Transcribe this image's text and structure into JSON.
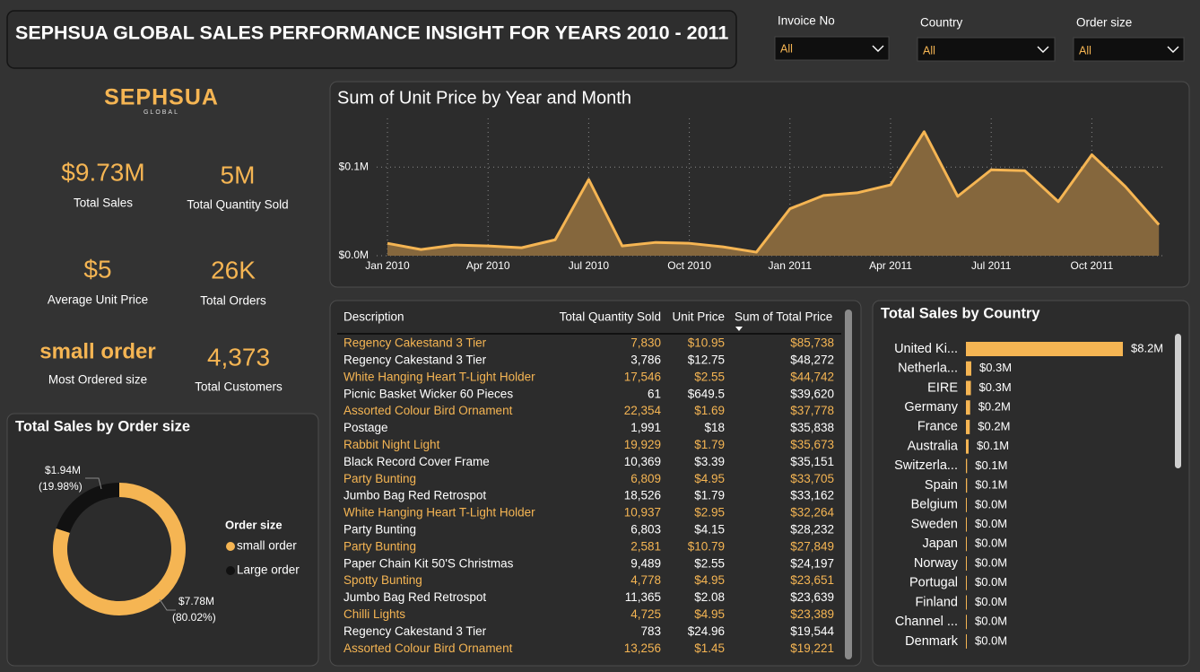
{
  "header": {
    "title": "SEPHSUA GLOBAL SALES PERFORMANCE INSIGHT FOR YEARS 2010 - 2011"
  },
  "filters": [
    {
      "label": "Invoice No",
      "value": "All"
    },
    {
      "label": "Country",
      "value": "All"
    },
    {
      "label": "Order size",
      "value": "All"
    }
  ],
  "logo": {
    "name": "SEPHSUA",
    "tagline": "GLOBAL"
  },
  "kpis": [
    {
      "value": "$9.73M",
      "label": "Total Sales"
    },
    {
      "value": "5M",
      "label": "Total Quantity Sold"
    },
    {
      "value": "$5",
      "label": "Average Unit Price"
    },
    {
      "value": "26K",
      "label": "Total Orders"
    },
    {
      "value": "small order",
      "label": "Most Ordered size"
    },
    {
      "value": "4,373",
      "label": "Total Customers"
    }
  ],
  "chart_data": [
    {
      "type": "line",
      "title": "Sum of Unit Price by Year and Month",
      "categories": [
        "Jan 2010",
        null,
        null,
        "Apr 2010",
        null,
        null,
        "Jul 2010",
        null,
        null,
        "Oct 2010",
        null,
        null,
        "Jan 2011",
        null,
        null,
        "Apr 2011",
        null,
        null,
        "Jul 2011",
        null,
        null,
        "Oct 2011",
        null,
        null
      ],
      "values": [
        0.014,
        0.007,
        0.012,
        0.011,
        0.009,
        0.018,
        0.086,
        0.011,
        0.015,
        0.014,
        0.01,
        0.004,
        0.053,
        0.068,
        0.071,
        0.08,
        0.14,
        0.067,
        0.097,
        0.096,
        0.061,
        0.114,
        0.078,
        0.035
      ],
      "color": "#f5b553",
      "area_color": "#85673d",
      "ylim": [
        0,
        0.155
      ],
      "yticks": [
        {
          "value": 0,
          "label": "$0.0M"
        },
        {
          "value": 0.1,
          "label": "$0.1M"
        }
      ],
      "grid": true
    },
    {
      "type": "donut",
      "title": "Total Sales by Order size",
      "legend_title": "Order size",
      "categories": [
        "small order",
        "Large order"
      ],
      "values": [
        7.78,
        1.94
      ],
      "value_labels": [
        "$7.78M",
        "$1.94M"
      ],
      "percent_labels": [
        "(80.02%)",
        "(19.98%)"
      ],
      "colors": [
        "#f5b553",
        "#111111"
      ]
    },
    {
      "type": "bar",
      "orientation": "horizontal",
      "title": "Total Sales by Country",
      "categories": [
        "United Ki...",
        "Netherla...",
        "EIRE",
        "Germany",
        "France",
        "Australia",
        "Switzerla...",
        "Spain",
        "Belgium",
        "Sweden",
        "Japan",
        "Norway",
        "Portugal",
        "Finland",
        "Channel ...",
        "Denmark"
      ],
      "values": [
        8.2,
        0.28,
        0.26,
        0.22,
        0.2,
        0.14,
        0.06,
        0.06,
        0.04,
        0.04,
        0.03,
        0.03,
        0.03,
        0.02,
        0.02,
        0.02
      ],
      "value_labels": [
        "$8.2M",
        "$0.3M",
        "$0.3M",
        "$0.2M",
        "$0.2M",
        "$0.1M",
        "$0.1M",
        "$0.1M",
        "$0.0M",
        "$0.0M",
        "$0.0M",
        "$0.0M",
        "$0.0M",
        "$0.0M",
        "$0.0M",
        "$0.0M"
      ],
      "color": "#f5b553",
      "xlim": [
        0,
        8.2
      ]
    }
  ],
  "table": {
    "columns": [
      "Description",
      "Total Quantity Sold",
      "Unit Price",
      "Sum of Total Price"
    ],
    "rows": [
      [
        "Regency Cakestand 3 Tier",
        "7,830",
        "$10.95",
        "$85,738"
      ],
      [
        "Regency Cakestand 3 Tier",
        "3,786",
        "$12.75",
        "$48,272"
      ],
      [
        "White Hanging Heart T-Light Holder",
        "17,546",
        "$2.55",
        "$44,742"
      ],
      [
        "Picnic Basket Wicker 60 Pieces",
        "61",
        "$649.5",
        "$39,620"
      ],
      [
        "Assorted Colour Bird Ornament",
        "22,354",
        "$1.69",
        "$37,778"
      ],
      [
        "Postage",
        "1,991",
        "$18",
        "$35,838"
      ],
      [
        "Rabbit Night Light",
        "19,929",
        "$1.79",
        "$35,673"
      ],
      [
        "Black Record Cover Frame",
        "10,369",
        "$3.39",
        "$35,151"
      ],
      [
        "Party Bunting",
        "6,809",
        "$4.95",
        "$33,705"
      ],
      [
        "Jumbo Bag Red Retrospot",
        "18,526",
        "$1.79",
        "$33,162"
      ],
      [
        "White Hanging Heart T-Light Holder",
        "10,937",
        "$2.95",
        "$32,264"
      ],
      [
        "Party Bunting",
        "6,803",
        "$4.15",
        "$28,232"
      ],
      [
        "Party Bunting",
        "2,581",
        "$10.79",
        "$27,849"
      ],
      [
        "Paper Chain Kit 50'S Christmas",
        "9,489",
        "$2.55",
        "$24,197"
      ],
      [
        "Spotty Bunting",
        "4,778",
        "$4.95",
        "$23,651"
      ],
      [
        "Jumbo Bag Red Retrospot",
        "11,365",
        "$2.08",
        "$23,639"
      ],
      [
        "Chilli Lights",
        "4,725",
        "$4.95",
        "$23,389"
      ],
      [
        "Regency Cakestand 3 Tier",
        "783",
        "$24.96",
        "$19,544"
      ],
      [
        "Assorted Colour Bird Ornament",
        "13,256",
        "$1.45",
        "$19,221"
      ]
    ]
  }
}
